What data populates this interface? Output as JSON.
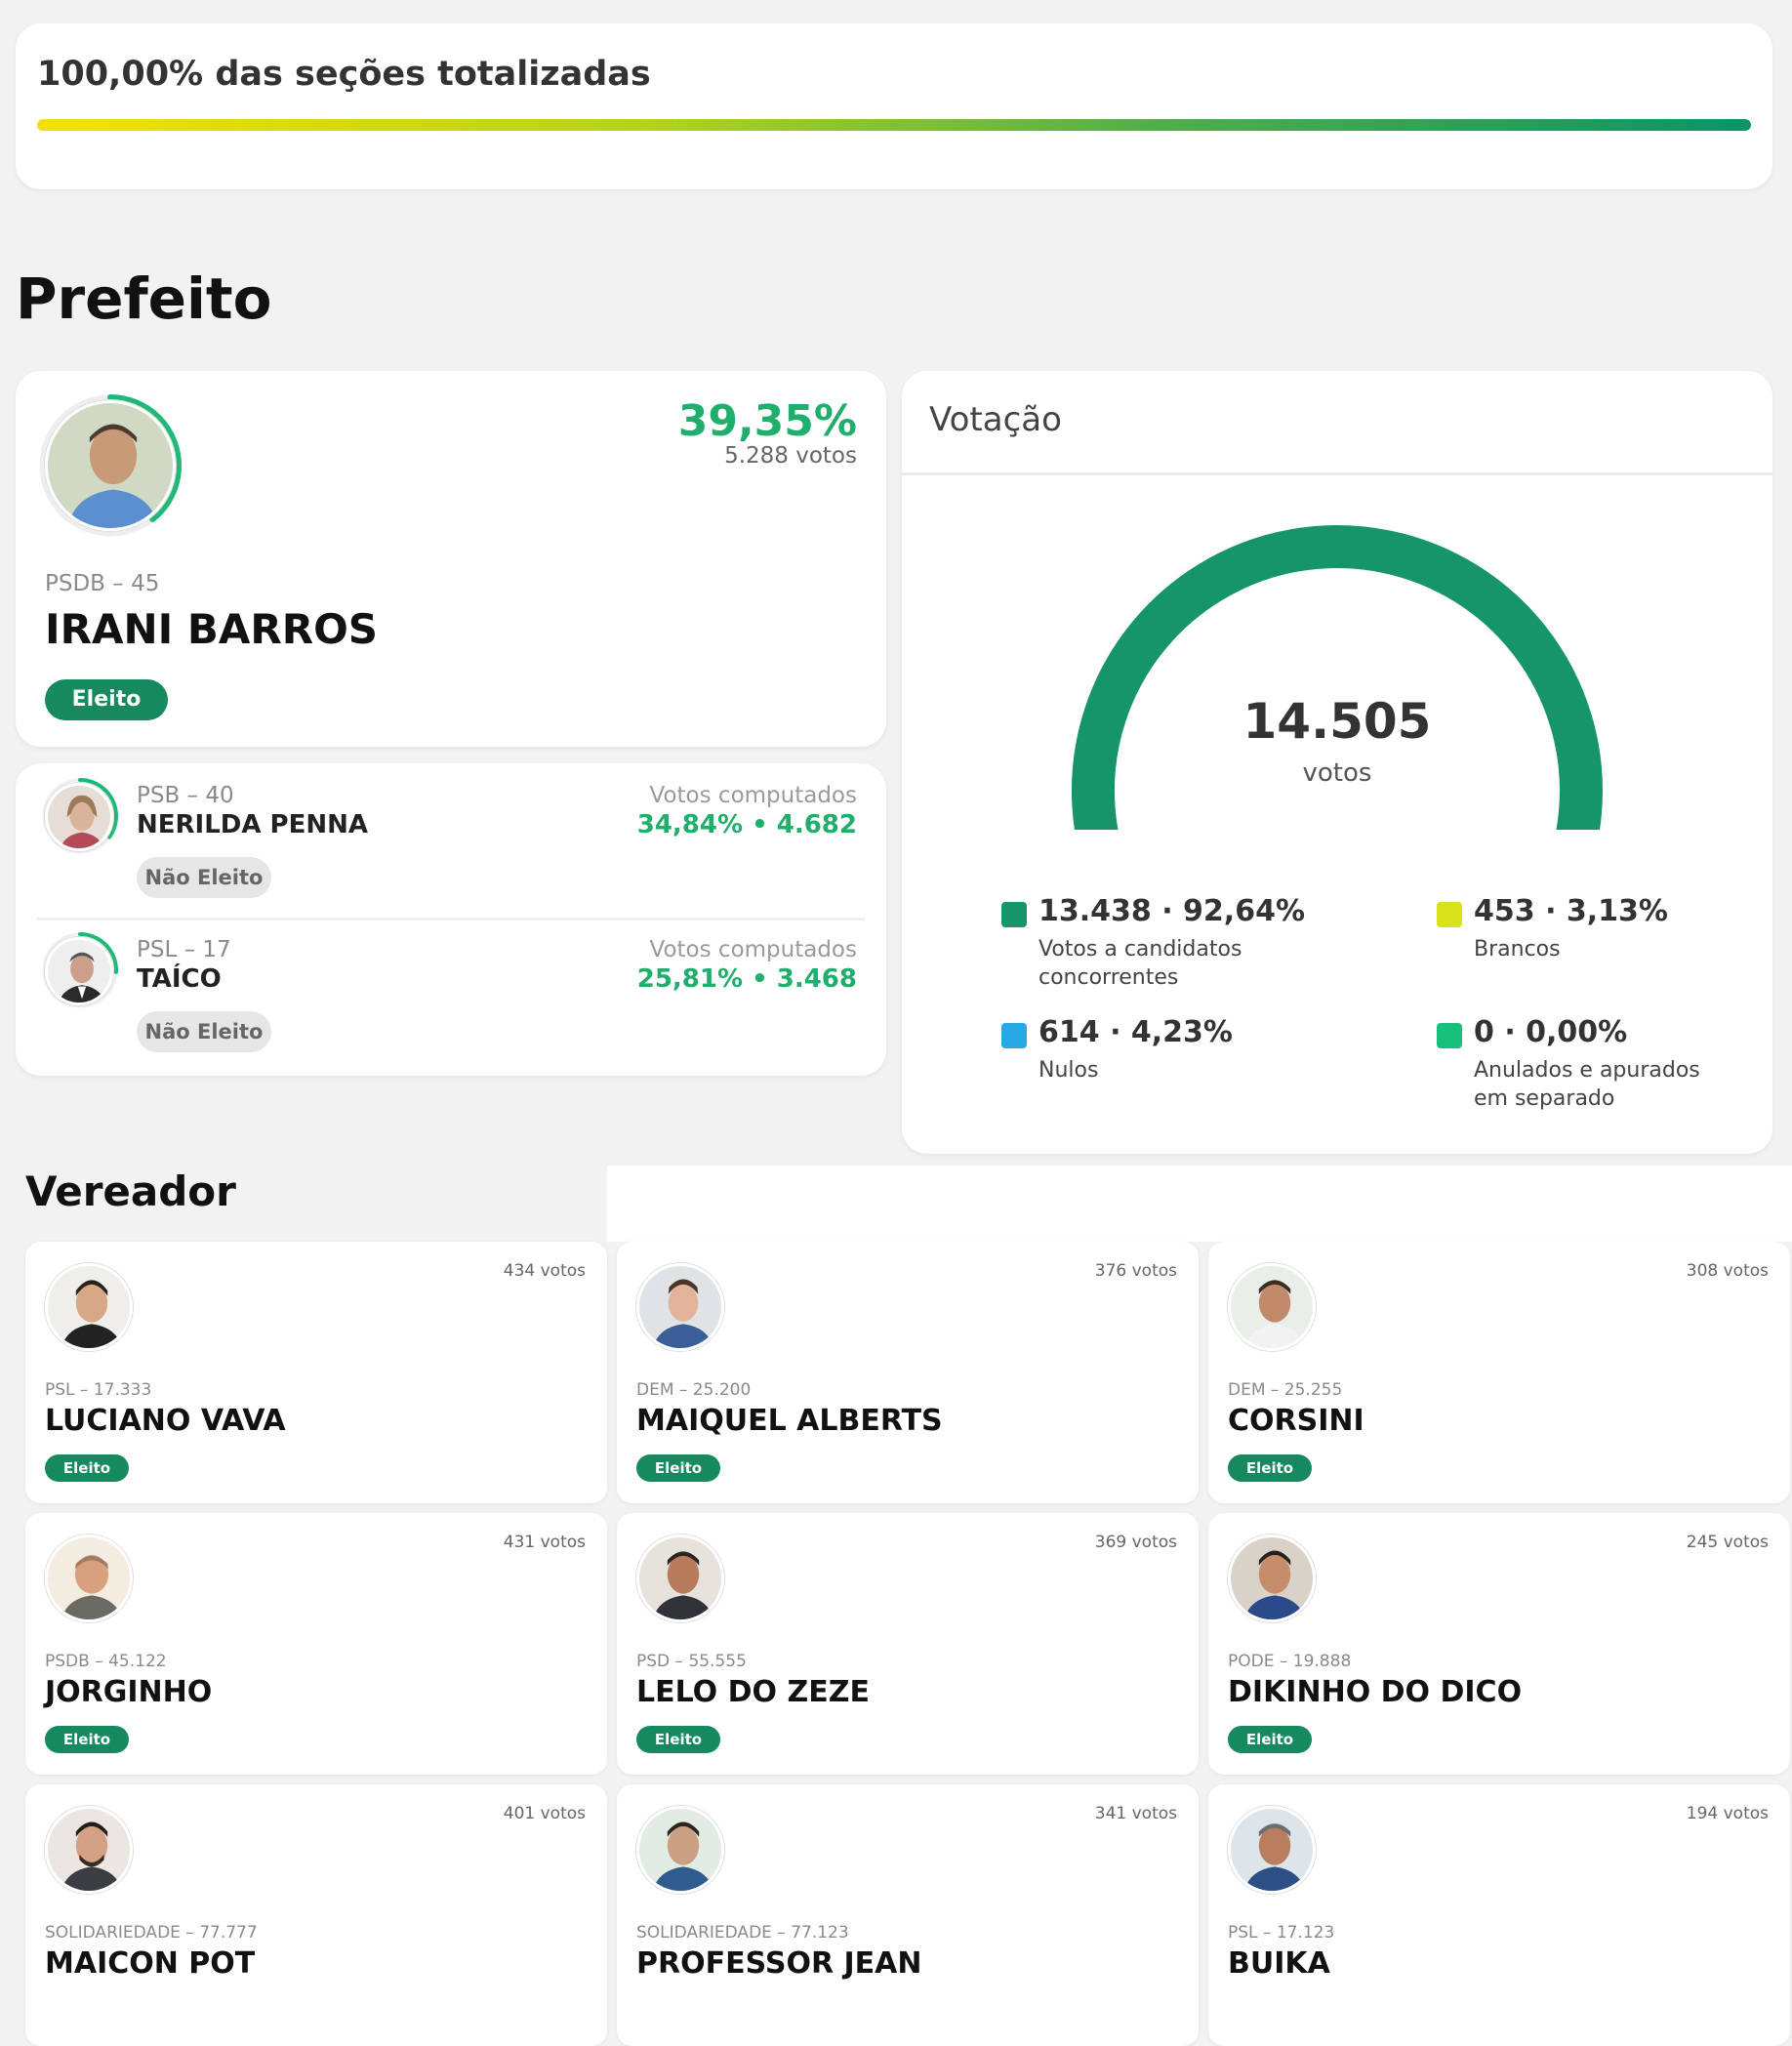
{
  "progress": {
    "title": "100,00% das seções totalizadas",
    "value_pct": 100
  },
  "sections": {
    "prefeito": "Prefeito",
    "vereador": "Vereador"
  },
  "winner": {
    "pct": "39,35%",
    "votes": "5.288 votos",
    "party": "PSDB – 45",
    "name": "IRANI BARROS",
    "status": "Eleito",
    "ring_fraction": 0.3935
  },
  "mayors": [
    {
      "party": "PSB – 40",
      "name": "NERILDA PENNA",
      "status": "Não Eleito",
      "label": "Votos computados",
      "value": "34,84%  •  4.682",
      "ring_fraction": 0.3484
    },
    {
      "party": "PSL – 17",
      "name": "TAÍCO",
      "status": "Não Eleito",
      "label": "Votos computados",
      "value": "25,81%  •  3.468",
      "ring_fraction": 0.2581
    }
  ],
  "votacao": {
    "title": "Votação",
    "total": "14.505",
    "unit": "votos",
    "colors": {
      "valid": "#17956a",
      "brancos": "#d7e21a",
      "nulos": "#27a9e8",
      "anulados": "#17c07c"
    },
    "legend": [
      {
        "key": "valid",
        "value": "13.438 · 92,64%",
        "label": "Votos a candidatos concorrentes",
        "fraction": 0.9264
      },
      {
        "key": "brancos",
        "value": "453 · 3,13%",
        "label": "Brancos",
        "fraction": 0.0313
      },
      {
        "key": "nulos",
        "value": "614 · 4,23%",
        "label": "Nulos",
        "fraction": 0.0423
      },
      {
        "key": "anulados",
        "value": "0 · 0,00%",
        "label": "Anulados e apurados em separado",
        "fraction": 0
      }
    ]
  },
  "vereadores": [
    {
      "votes": "434 votos",
      "party": "PSL – 17.333",
      "name": "LUCIANO VAVA",
      "status": "Eleito"
    },
    {
      "votes": "376 votos",
      "party": "DEM – 25.200",
      "name": "MAIQUEL ALBERTS",
      "status": "Eleito"
    },
    {
      "votes": "308 votos",
      "party": "DEM – 25.255",
      "name": "CORSINI",
      "status": "Eleito"
    },
    {
      "votes": "431 votos",
      "party": "PSDB – 45.122",
      "name": "JORGINHO",
      "status": "Eleito"
    },
    {
      "votes": "369 votos",
      "party": "PSD – 55.555",
      "name": "LELO DO ZEZE",
      "status": "Eleito"
    },
    {
      "votes": "245 votos",
      "party": "PODE – 19.888",
      "name": "DIKINHO DO DICO",
      "status": "Eleito"
    },
    {
      "votes": "401 votos",
      "party": "SOLIDARIEDADE – 77.777",
      "name": "MAICON POT",
      "status": ""
    },
    {
      "votes": "341 votos",
      "party": "SOLIDARIEDADE – 77.123",
      "name": "PROFESSOR JEAN",
      "status": ""
    },
    {
      "votes": "194 votos",
      "party": "PSL – 17.123",
      "name": "BUIKA",
      "status": ""
    }
  ]
}
